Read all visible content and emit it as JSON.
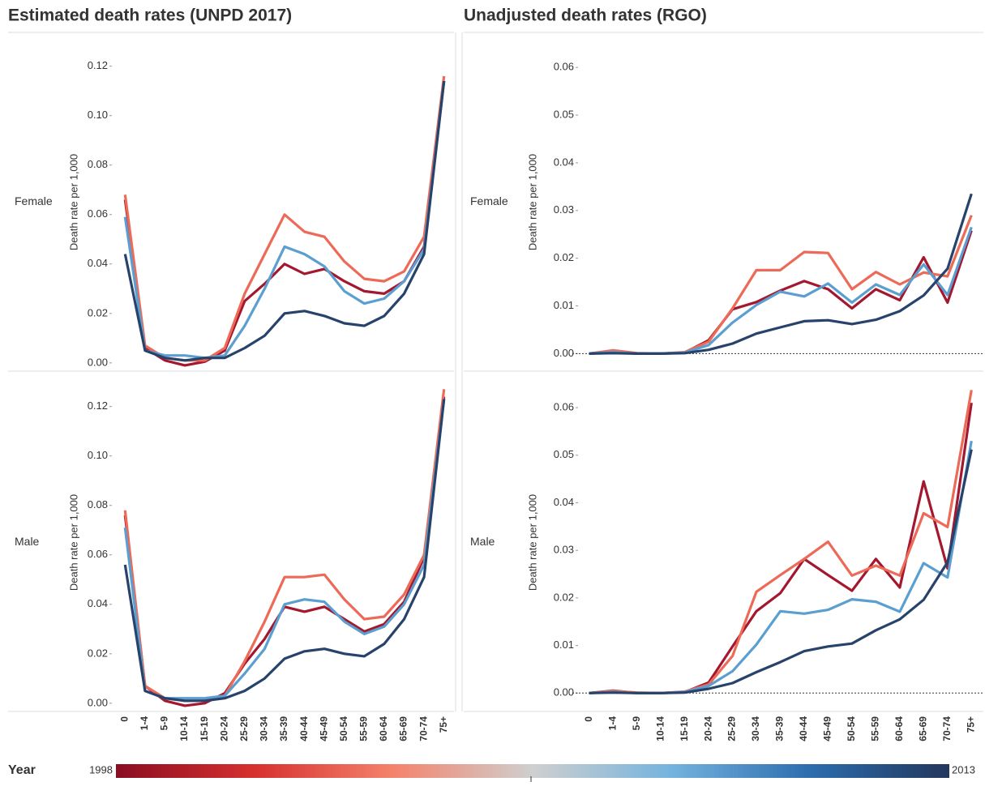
{
  "chart_data": [
    {
      "type": "line",
      "title": "Estimated death rates (UNPD 2017)",
      "row_label": "Female",
      "ylabel": "Death rate per 1,000",
      "ylim": [
        -0.003,
        0.133
      ],
      "yticks": [
        {
          "value": 0,
          "label": "0.00"
        },
        {
          "value": 0.02,
          "label": "0.02"
        },
        {
          "value": 0.04,
          "label": "0.04"
        },
        {
          "value": 0.06,
          "label": "0.06"
        },
        {
          "value": 0.08,
          "label": "0.08"
        },
        {
          "value": 0.1,
          "label": "0.10"
        },
        {
          "value": 0.12,
          "label": "0.12"
        }
      ],
      "zero_line": false,
      "series": [
        {
          "color": "#a3182f",
          "values": [
            0.066,
            0.006,
            0.001,
            -0.001,
            0.0005,
            0.005,
            0.025,
            0.032,
            0.04,
            0.036,
            0.038,
            0.033,
            0.029,
            0.028,
            0.033,
            0.047,
            0.114
          ]
        },
        {
          "color": "#ec6a57",
          "values": [
            0.068,
            0.007,
            0.002,
            0.001,
            0.001,
            0.006,
            0.028,
            0.044,
            0.06,
            0.053,
            0.051,
            0.041,
            0.034,
            0.033,
            0.037,
            0.051,
            0.116
          ]
        },
        {
          "color": "#5b9fd0",
          "values": [
            0.059,
            0.005,
            0.003,
            0.003,
            0.002,
            0.003,
            0.015,
            0.03,
            0.047,
            0.044,
            0.039,
            0.029,
            0.024,
            0.026,
            0.033,
            0.046,
            0.114
          ]
        },
        {
          "color": "#27436b",
          "values": [
            0.044,
            0.005,
            0.002,
            0.001,
            0.002,
            0.002,
            0.006,
            0.011,
            0.02,
            0.021,
            0.019,
            0.016,
            0.015,
            0.019,
            0.028,
            0.044,
            0.114
          ]
        }
      ]
    },
    {
      "type": "line",
      "title": "Unadjusted death rates (RGO)",
      "row_label": "Female",
      "ylabel": "Death rate per 1,000",
      "ylim": [
        -0.0035,
        0.067
      ],
      "yticks": [
        {
          "value": 0,
          "label": "0.00"
        },
        {
          "value": 0.01,
          "label": "0.01"
        },
        {
          "value": 0.02,
          "label": "0.02"
        },
        {
          "value": 0.03,
          "label": "0.03"
        },
        {
          "value": 0.04,
          "label": "0.04"
        },
        {
          "value": 0.05,
          "label": "0.05"
        },
        {
          "value": 0.06,
          "label": "0.06"
        }
      ],
      "zero_line": true,
      "series": [
        {
          "color": "#a3182f",
          "values": [
            0,
            0.0005,
            0,
            0,
            0.0002,
            0.0028,
            0.0093,
            0.0108,
            0.0132,
            0.0152,
            0.0135,
            0.0095,
            0.0135,
            0.0112,
            0.0202,
            0.0107,
            0.0258
          ]
        },
        {
          "color": "#ec6a57",
          "values": [
            0,
            0.0007,
            0.0001,
            0,
            0.0003,
            0.0025,
            0.0095,
            0.0175,
            0.0175,
            0.0213,
            0.0211,
            0.0135,
            0.0171,
            0.0145,
            0.017,
            0.0162,
            0.029
          ]
        },
        {
          "color": "#5b9fd0",
          "values": [
            0,
            0.0003,
            0,
            0,
            0.0002,
            0.0018,
            0.0065,
            0.0102,
            0.013,
            0.012,
            0.0147,
            0.0107,
            0.0145,
            0.0123,
            0.0187,
            0.0123,
            0.0265
          ]
        },
        {
          "color": "#27436b",
          "values": [
            0,
            0.0001,
            0,
            0,
            0.0001,
            0.0008,
            0.0021,
            0.0042,
            0.0055,
            0.0068,
            0.007,
            0.0062,
            0.0071,
            0.0089,
            0.0122,
            0.0178,
            0.0335
          ]
        }
      ]
    },
    {
      "type": "line",
      "row_label": "Male",
      "ylabel": "Death rate per 1,000",
      "categories": [
        "0",
        "1-4",
        "5-9",
        "10-14",
        "15-19",
        "20-24",
        "25-29",
        "30-34",
        "35-39",
        "40-44",
        "45-49",
        "50-54",
        "55-59",
        "60-64",
        "65-69",
        "70-74",
        "75+"
      ],
      "ylim": [
        -0.003,
        0.133
      ],
      "yticks": [
        {
          "value": 0,
          "label": "0.00"
        },
        {
          "value": 0.02,
          "label": "0.02"
        },
        {
          "value": 0.04,
          "label": "0.04"
        },
        {
          "value": 0.06,
          "label": "0.06"
        },
        {
          "value": 0.08,
          "label": "0.08"
        },
        {
          "value": 0.1,
          "label": "0.10"
        },
        {
          "value": 0.12,
          "label": "0.12"
        }
      ],
      "zero_line": false,
      "series": [
        {
          "color": "#a3182f",
          "values": [
            0.076,
            0.007,
            0.001,
            -0.001,
            0,
            0.004,
            0.016,
            0.026,
            0.039,
            0.037,
            0.039,
            0.034,
            0.029,
            0.032,
            0.041,
            0.059,
            0.124
          ]
        },
        {
          "color": "#ec6a57",
          "values": [
            0.078,
            0.007,
            0.002,
            0.001,
            0.001,
            0.003,
            0.017,
            0.033,
            0.051,
            0.051,
            0.052,
            0.042,
            0.034,
            0.035,
            0.044,
            0.06,
            0.127
          ]
        },
        {
          "color": "#5b9fd0",
          "values": [
            0.071,
            0.005,
            0.002,
            0.002,
            0.002,
            0.003,
            0.012,
            0.022,
            0.04,
            0.042,
            0.041,
            0.033,
            0.028,
            0.031,
            0.04,
            0.056,
            0.123
          ]
        },
        {
          "color": "#27436b",
          "values": [
            0.056,
            0.005,
            0.002,
            0.001,
            0.001,
            0.002,
            0.005,
            0.01,
            0.018,
            0.021,
            0.022,
            0.02,
            0.019,
            0.024,
            0.034,
            0.051,
            0.123
          ]
        }
      ]
    },
    {
      "type": "line",
      "row_label": "Male",
      "ylabel": "Death rate per 1,000",
      "categories": [
        "0",
        "1-4",
        "5-9",
        "10-14",
        "15-19",
        "20-24",
        "25-29",
        "30-34",
        "35-39",
        "40-44",
        "45-49",
        "50-54",
        "55-59",
        "60-64",
        "65-69",
        "70-74",
        "75+"
      ],
      "ylim": [
        -0.0037,
        0.067
      ],
      "yticks": [
        {
          "value": 0,
          "label": "0.00"
        },
        {
          "value": 0.01,
          "label": "0.01"
        },
        {
          "value": 0.02,
          "label": "0.02"
        },
        {
          "value": 0.03,
          "label": "0.03"
        },
        {
          "value": 0.04,
          "label": "0.04"
        },
        {
          "value": 0.05,
          "label": "0.05"
        },
        {
          "value": 0.06,
          "label": "0.06"
        }
      ],
      "zero_line": true,
      "series": [
        {
          "color": "#a3182f",
          "values": [
            0,
            0.0005,
            0,
            0,
            0.0002,
            0.0022,
            0.0098,
            0.0172,
            0.021,
            0.0282,
            0.0248,
            0.0215,
            0.0282,
            0.0222,
            0.0445,
            0.0262,
            0.061
          ]
        },
        {
          "color": "#ec6a57",
          "values": [
            0,
            0.0004,
            0.0001,
            0,
            0.0003,
            0.0018,
            0.0078,
            0.0213,
            0.0248,
            0.0282,
            0.0318,
            0.0247,
            0.0268,
            0.0247,
            0.0378,
            0.0349,
            0.0637
          ]
        },
        {
          "color": "#5b9fd0",
          "values": [
            0,
            0.0002,
            0,
            0,
            0.0002,
            0.0015,
            0.0046,
            0.0102,
            0.0172,
            0.0167,
            0.0175,
            0.0197,
            0.0192,
            0.0171,
            0.0273,
            0.0243,
            0.053
          ]
        },
        {
          "color": "#27436b",
          "values": [
            0,
            0.0001,
            0,
            0,
            0.0001,
            0.0009,
            0.0021,
            0.0044,
            0.0065,
            0.0088,
            0.0098,
            0.0104,
            0.0132,
            0.0155,
            0.0196,
            0.0275,
            0.0512
          ]
        }
      ]
    }
  ],
  "legend": {
    "title": "Year",
    "range": [
      1998,
      2013
    ],
    "colors": [
      "#8a0d22",
      "#d7302f",
      "#f4836c",
      "#cfcfcf",
      "#74b3de",
      "#2c6cae",
      "#23375c"
    ]
  }
}
